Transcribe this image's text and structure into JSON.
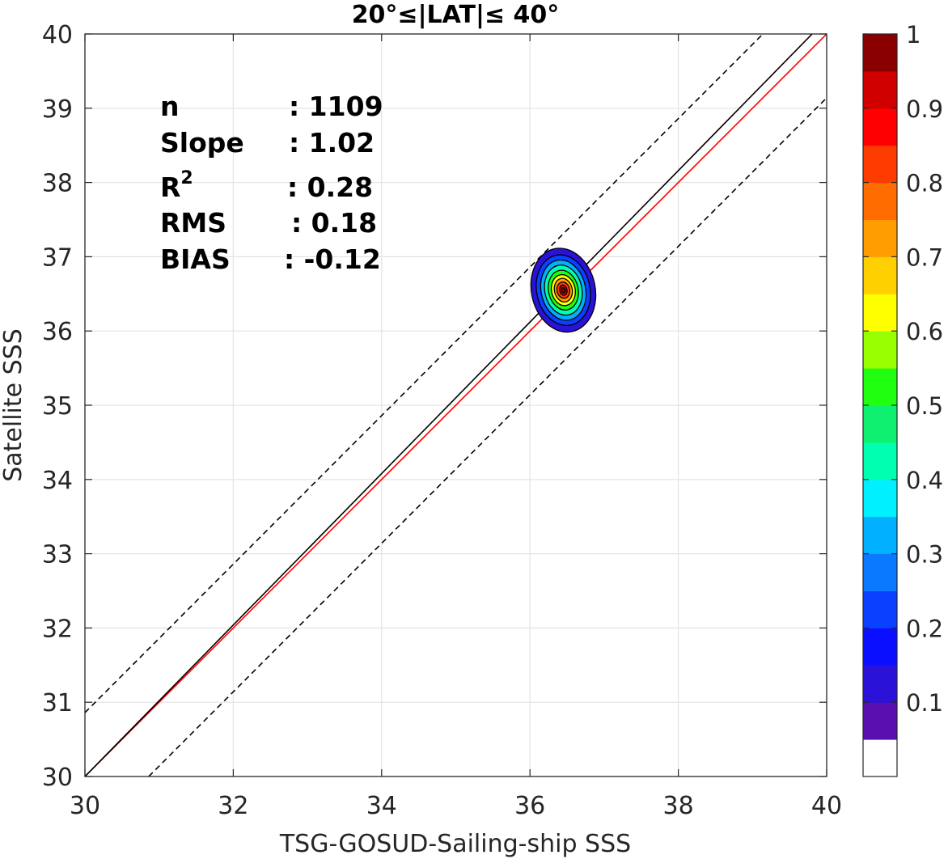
{
  "chart_data": {
    "type": "contour",
    "title": "20°≤|LAT|≤ 40°",
    "xlabel": "TSG-GOSUD-Sailing-ship SSS",
    "ylabel": "Satellite SSS",
    "xlim": [
      30,
      40
    ],
    "ylim": [
      30,
      40
    ],
    "xticks": [
      30,
      32,
      34,
      36,
      38,
      40
    ],
    "yticks": [
      30,
      31,
      32,
      33,
      34,
      35,
      36,
      37,
      38,
      39,
      40
    ],
    "grid": true,
    "stats": {
      "n_label": "n",
      "n_value": ": 1109",
      "slope_label": "Slope",
      "slope_value": ": 1.02",
      "r2_label": "R",
      "r2_sup": "2",
      "r2_value": ": 0.28",
      "rms_label": "RMS",
      "rms_value": ": 0.18",
      "bias_label": "BIAS",
      "bias_value": ": -0.12"
    },
    "lines": [
      {
        "role": "one-to-one",
        "color": "#ff0000",
        "style": "solid",
        "x": [
          30,
          40
        ],
        "y": [
          30,
          40
        ]
      },
      {
        "role": "regression",
        "color": "#000000",
        "style": "solid",
        "x": [
          30,
          40
        ],
        "y": [
          30,
          40.2
        ]
      },
      {
        "role": "upper-bound",
        "color": "#000000",
        "style": "dashed",
        "x": [
          30,
          40
        ],
        "y": [
          30.86,
          40.86
        ]
      },
      {
        "role": "lower-bound",
        "color": "#000000",
        "style": "dashed",
        "x": [
          30.86,
          40
        ],
        "y": [
          30,
          39.14
        ]
      }
    ],
    "density": {
      "center": [
        36.45,
        36.55
      ],
      "levels": [
        {
          "level": 0.05,
          "rx": 0.43,
          "ry": 0.57
        },
        {
          "level": 0.15,
          "rx": 0.36,
          "ry": 0.48
        },
        {
          "level": 0.25,
          "rx": 0.3,
          "ry": 0.41
        },
        {
          "level": 0.35,
          "rx": 0.25,
          "ry": 0.34
        },
        {
          "level": 0.45,
          "rx": 0.2,
          "ry": 0.27
        },
        {
          "level": 0.55,
          "rx": 0.16,
          "ry": 0.21
        },
        {
          "level": 0.65,
          "rx": 0.12,
          "ry": 0.16
        },
        {
          "level": 0.75,
          "rx": 0.085,
          "ry": 0.11
        },
        {
          "level": 0.85,
          "rx": 0.05,
          "ry": 0.07
        },
        {
          "level": 0.95,
          "rx": 0.025,
          "ry": 0.035
        }
      ]
    },
    "colorbar": {
      "ticks": [
        "0.1",
        "0.2",
        "0.3",
        "0.4",
        "0.5",
        "0.6",
        "0.7",
        "0.8",
        "0.9",
        "1"
      ],
      "tick_values": [
        0.1,
        0.2,
        0.3,
        0.4,
        0.5,
        0.6,
        0.7,
        0.8,
        0.9,
        1.0
      ],
      "colors": [
        "#ffffff",
        "#5a0fb0",
        "#2a12d8",
        "#0a10ff",
        "#0a40ff",
        "#0a78ff",
        "#00b0ff",
        "#00f0ff",
        "#00ffb0",
        "#10f070",
        "#20ff10",
        "#98ff00",
        "#ffff00",
        "#ffd000",
        "#ff9c00",
        "#ff6c00",
        "#ff3c00",
        "#ff0000",
        "#d00000",
        "#8a0000"
      ]
    }
  }
}
